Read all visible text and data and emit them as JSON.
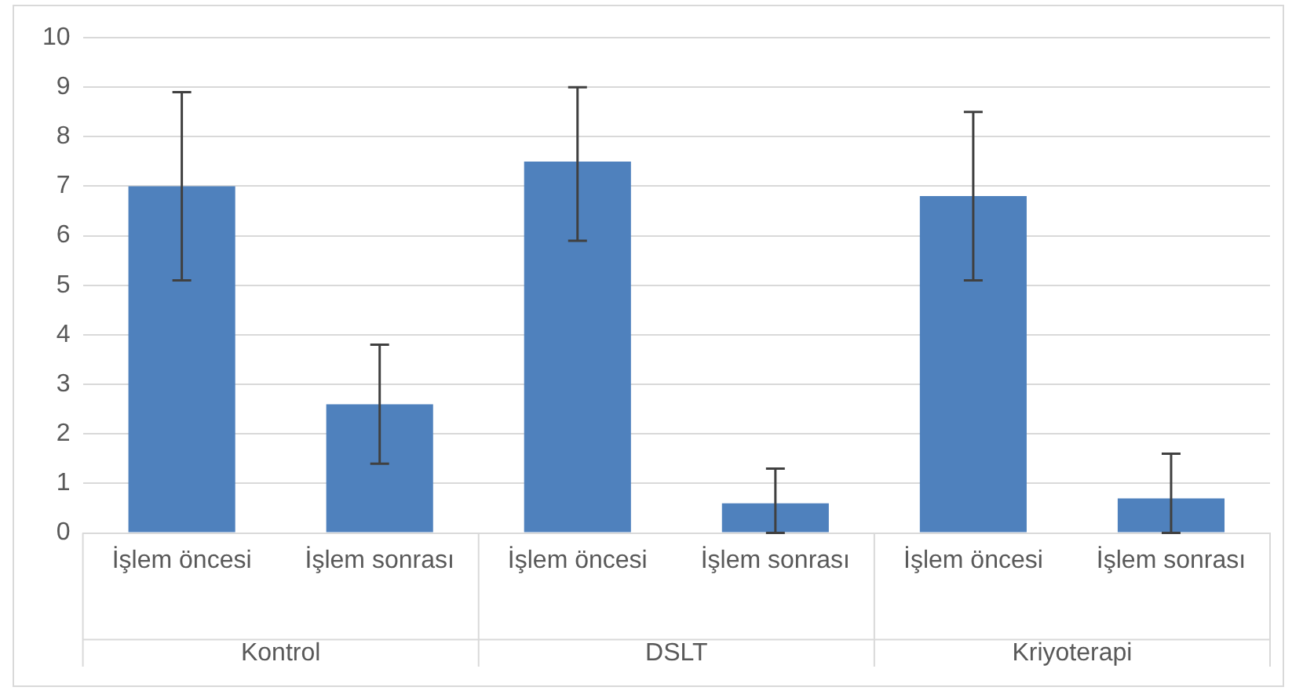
{
  "chart_data": {
    "type": "bar",
    "categories": [
      "İşlem öncesi",
      "İşlem sonrası",
      "İşlem öncesi",
      "İşlem sonrası",
      "İşlem öncesi",
      "İşlem sonrası"
    ],
    "values": [
      7.0,
      2.6,
      7.5,
      0.6,
      6.8,
      0.7
    ],
    "errors": [
      [
        5.1,
        8.9
      ],
      [
        1.4,
        3.8
      ],
      [
        5.9,
        9.0
      ],
      [
        0,
        1.3
      ],
      [
        5.1,
        8.5
      ],
      [
        0,
        1.6
      ]
    ],
    "color": "#4f81bd",
    "ylim": [
      0,
      10
    ],
    "yticks": [
      0,
      1,
      2,
      3,
      4,
      5,
      6,
      7,
      8,
      9,
      10
    ],
    "grid": "y",
    "legend": false,
    "annotations": [
      "Kontrol",
      "DSLT",
      "Kriyoterapi"
    ]
  }
}
